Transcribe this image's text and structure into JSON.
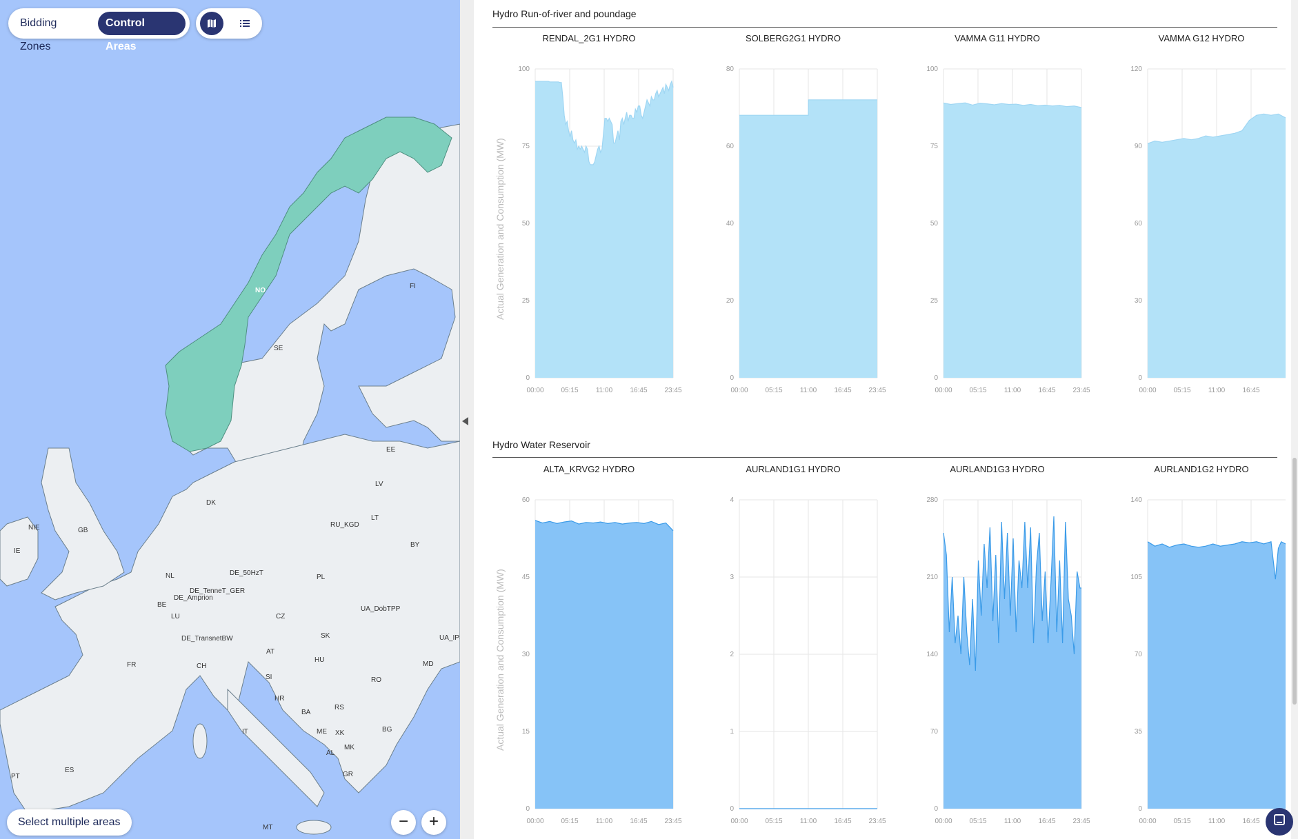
{
  "map": {
    "mode_buttons": [
      "Bidding Zones",
      "Control Areas"
    ],
    "active_mode": "Control Areas",
    "view_icons": [
      "map-icon",
      "list-icon"
    ],
    "select_multiple_label": "Select multiple areas",
    "zoom_out_label": "−",
    "zoom_in_label": "+",
    "colors": {
      "sea": "#a5c5fb",
      "land": "#eceff2",
      "selected": "#7ecfbd",
      "border": "#6b7f8c"
    },
    "selected_area": "NO",
    "country_labels": [
      "NO",
      "SE",
      "FI",
      "EE",
      "LV",
      "LT",
      "RU_KGD",
      "BY",
      "DK",
      "NIE",
      "GB",
      "IE",
      "NL",
      "BE",
      "LU",
      "DE_Amprion",
      "DE_TenneT_GER",
      "DE_50HzT",
      "PL",
      "UA_DobTPP",
      "CZ",
      "DE_TransnetBW",
      "SK",
      "UA_IPS",
      "FR",
      "CH",
      "AT",
      "HU",
      "MD",
      "RO",
      "SI",
      "HR",
      "BA",
      "RS",
      "ME",
      "XK",
      "MK",
      "BG",
      "IT",
      "AL",
      "GR",
      "ES",
      "PT",
      "MT"
    ]
  },
  "charts": {
    "y_axis_title": "Actual Generation and Consumption (MW)",
    "sections": [
      {
        "title": "Hydro Run-of-river and poundage",
        "color": "#b3e2f8"
      },
      {
        "title": "Hydro Water Reservoir",
        "color": "#86c3f7"
      }
    ]
  },
  "chart_data": [
    {
      "type": "area",
      "section": 0,
      "title": "RENDAL_2G1 HYDRO",
      "x_ticks": [
        "00:00",
        "05:15",
        "11:00",
        "16:45",
        "23:45"
      ],
      "y_ticks": [
        "0",
        "25",
        "50",
        "75",
        "100"
      ],
      "ylim": [
        0,
        100
      ],
      "x": [
        0,
        1,
        2,
        3,
        4,
        5,
        6,
        7,
        8,
        9,
        10,
        11,
        12,
        13,
        14,
        15,
        16,
        17,
        18,
        19,
        20,
        21,
        22,
        23,
        24,
        25,
        26,
        27,
        28,
        29,
        30,
        31,
        32,
        33,
        34,
        35,
        36,
        37,
        38,
        39,
        40,
        41,
        42,
        43,
        44,
        45,
        46,
        47,
        48,
        49,
        50,
        51,
        52,
        53,
        54,
        55,
        56,
        57,
        58,
        59,
        60,
        61,
        62,
        63,
        64,
        65,
        66,
        67,
        68,
        69,
        70,
        71,
        72,
        73,
        74,
        75,
        76,
        77,
        78,
        79,
        80,
        81,
        82,
        83,
        84,
        85,
        86,
        87,
        88,
        89,
        90,
        91,
        92,
        93,
        94,
        95
      ],
      "values": [
        96,
        96,
        96,
        96,
        96,
        96,
        96,
        96,
        96,
        96,
        95.8,
        95.8,
        95.8,
        95.8,
        95.8,
        95.8,
        95.8,
        95.6,
        95.6,
        91,
        85,
        82,
        83,
        80,
        78,
        80,
        77,
        76,
        77,
        74,
        75,
        74,
        75,
        74,
        73,
        75,
        74,
        70,
        69,
        69,
        69,
        70,
        72,
        74,
        75,
        73,
        74,
        79,
        84,
        84,
        83,
        84,
        83,
        82,
        76,
        76,
        78,
        80,
        77,
        83,
        84,
        82,
        84,
        86,
        83,
        85,
        85,
        84,
        84,
        87,
        86,
        88,
        88,
        85,
        84,
        86,
        88,
        90,
        89,
        88,
        91,
        90,
        90,
        92,
        93,
        91,
        92,
        93,
        94,
        92,
        95,
        94,
        93,
        95,
        96,
        94
      ]
    },
    {
      "type": "area",
      "section": 0,
      "title": "SOLBERG2G1 HYDRO",
      "x_ticks": [
        "00:00",
        "05:15",
        "11:00",
        "16:45",
        "23:45"
      ],
      "y_ticks": [
        "0",
        "20",
        "40",
        "60",
        "80"
      ],
      "ylim": [
        0,
        80
      ],
      "x": [
        0,
        23.75,
        47.5,
        47.6,
        71.25,
        95
      ],
      "values": [
        68,
        68,
        68,
        72,
        72,
        72
      ]
    },
    {
      "type": "area",
      "section": 0,
      "title": "VAMMA G11 HYDRO",
      "x_ticks": [
        "00:00",
        "05:15",
        "11:00",
        "16:45",
        "23:45"
      ],
      "y_ticks": [
        "0",
        "25",
        "50",
        "75",
        "100"
      ],
      "ylim": [
        0,
        100
      ],
      "x": [
        0,
        5,
        10,
        15,
        20,
        25,
        30,
        35,
        40,
        45,
        50,
        55,
        60,
        65,
        70,
        75,
        80,
        85,
        90,
        95
      ],
      "values": [
        89,
        88.5,
        88.8,
        89,
        88.3,
        88.9,
        88.7,
        88.4,
        88.8,
        88.5,
        88.6,
        88.2,
        88.5,
        88.1,
        88.3,
        88.0,
        88.2,
        87.8,
        88.0,
        87.5
      ]
    },
    {
      "type": "area",
      "section": 0,
      "title": "VAMMA G12 HYDRO",
      "x_ticks": [
        "00:00",
        "05:15",
        "11:00",
        "16:45"
      ],
      "y_ticks": [
        "0",
        "30",
        "60",
        "90",
        "120"
      ],
      "ylim": [
        0,
        120
      ],
      "x": [
        0,
        5,
        10,
        15,
        20,
        25,
        30,
        35,
        40,
        45,
        50,
        55,
        60,
        65,
        70,
        75,
        80,
        85,
        90,
        95
      ],
      "values": [
        91,
        92,
        91.5,
        92,
        92.5,
        93,
        92.5,
        93,
        94,
        93.5,
        94,
        94.5,
        95,
        96,
        100,
        102,
        102.5,
        102,
        102.5,
        101
      ]
    },
    {
      "type": "area",
      "section": 1,
      "title": "ALTA_KRVG2 HYDRO",
      "x_ticks": [
        "00:00",
        "05:15",
        "11:00",
        "16:45",
        "23:45"
      ],
      "y_ticks": [
        "0",
        "15",
        "30",
        "45",
        "60"
      ],
      "ylim": [
        0,
        60
      ],
      "x": [
        0,
        5,
        10,
        15,
        20,
        25,
        30,
        35,
        40,
        45,
        50,
        55,
        60,
        65,
        70,
        75,
        80,
        85,
        90,
        95
      ],
      "values": [
        56,
        55.5,
        55.8,
        55.4,
        55.7,
        55.9,
        55.3,
        55.6,
        55.5,
        55.7,
        55.4,
        55.6,
        55.3,
        55.5,
        55.6,
        55.4,
        55.8,
        55.2,
        55.5,
        54
      ]
    },
    {
      "type": "area",
      "section": 1,
      "title": "AURLAND1G1 HYDRO",
      "x_ticks": [
        "00:00",
        "05:15",
        "11:00",
        "16:45",
        "23:45"
      ],
      "y_ticks": [
        "0",
        "1",
        "2",
        "3",
        "4"
      ],
      "ylim": [
        0,
        4
      ],
      "x": [
        0,
        95
      ],
      "values": [
        0,
        0
      ]
    },
    {
      "type": "area",
      "section": 1,
      "title": "AURLAND1G3 HYDRO",
      "x_ticks": [
        "00:00",
        "05:15",
        "11:00",
        "16:45",
        "23:45"
      ],
      "y_ticks": [
        "0",
        "70",
        "140",
        "210",
        "280"
      ],
      "ylim": [
        0,
        280
      ],
      "x": [
        0,
        2,
        4,
        6,
        8,
        10,
        12,
        14,
        16,
        18,
        20,
        22,
        24,
        26,
        28,
        30,
        32,
        34,
        36,
        38,
        40,
        42,
        44,
        46,
        48,
        50,
        52,
        54,
        56,
        58,
        60,
        62,
        64,
        66,
        68,
        70,
        72,
        74,
        76,
        78,
        80,
        82,
        84,
        86,
        88,
        90,
        92,
        94,
        95
      ],
      "values": [
        250,
        230,
        160,
        210,
        150,
        175,
        140,
        210,
        160,
        130,
        190,
        125,
        225,
        175,
        240,
        200,
        255,
        170,
        230,
        150,
        260,
        190,
        250,
        175,
        245,
        160,
        225,
        200,
        260,
        200,
        255,
        150,
        220,
        250,
        170,
        215,
        150,
        205,
        265,
        160,
        225,
        150,
        260,
        190,
        175,
        140,
        215,
        200,
        200
      ]
    },
    {
      "type": "area",
      "section": 1,
      "title": "AURLAND1G2 HYDRO",
      "x_ticks": [
        "00:00",
        "05:15",
        "11:00",
        "16:45"
      ],
      "y_ticks": [
        "0",
        "35",
        "70",
        "105",
        "140"
      ],
      "ylim": [
        0,
        140
      ],
      "x": [
        0,
        5,
        10,
        15,
        20,
        25,
        30,
        35,
        40,
        45,
        50,
        55,
        60,
        65,
        70,
        75,
        80,
        85,
        88,
        90,
        92,
        95
      ],
      "values": [
        121,
        119,
        120,
        118.5,
        119.5,
        120,
        119,
        118.5,
        119,
        120,
        119,
        119.5,
        120,
        121,
        120.5,
        121,
        120,
        121,
        104,
        118,
        121,
        120
      ]
    }
  ]
}
